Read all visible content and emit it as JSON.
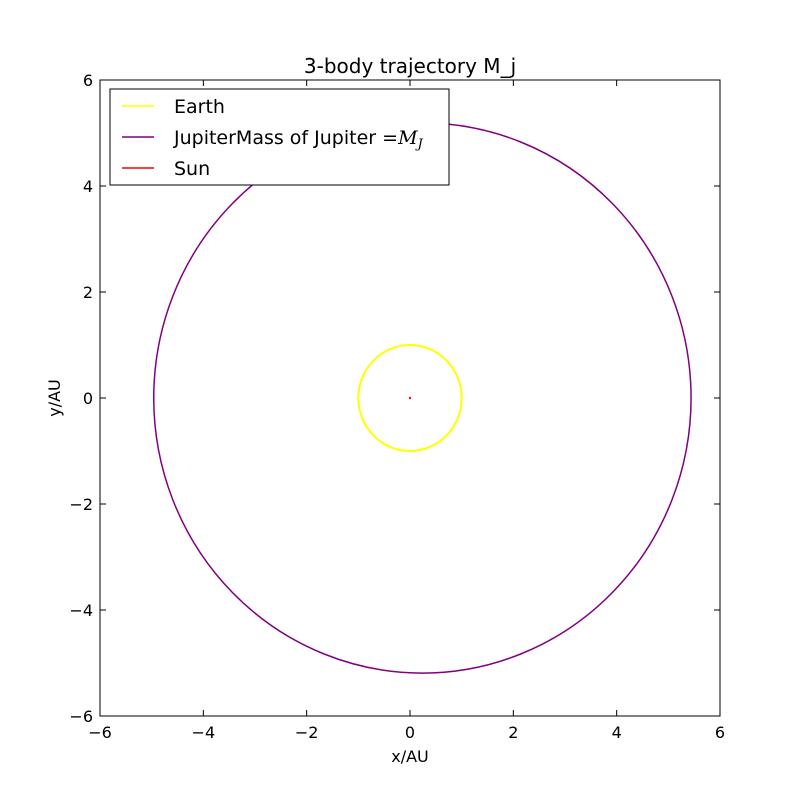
{
  "chart_data": {
    "type": "line",
    "title": "3-body trajectory M_j",
    "xlabel": "x/AU",
    "ylabel": "y/AU",
    "xlim": [
      -6,
      6
    ],
    "ylim": [
      -6,
      6
    ],
    "xticks": [
      -6,
      -4,
      -2,
      0,
      2,
      4,
      6
    ],
    "yticks": [
      -6,
      -4,
      -2,
      0,
      2,
      4,
      6
    ],
    "x_tick_labels": [
      "−6",
      "−4",
      "−2",
      "0",
      "2",
      "4",
      "6"
    ],
    "y_tick_labels": [
      "−6",
      "−4",
      "−2",
      "0",
      "2",
      "4",
      "6"
    ],
    "grid": false,
    "legend": {
      "placement": "top-left",
      "entries": [
        {
          "name": "Earth",
          "suffix": "",
          "color": "#ffff00"
        },
        {
          "name": "JupiterMass of Jupiter =",
          "suffix": "M_J",
          "color": "#800080"
        },
        {
          "name": "Sun",
          "suffix": "",
          "color": "#ff0000"
        }
      ]
    },
    "series": [
      {
        "name": "Earth",
        "color": "#ffff00",
        "shape": "orbit",
        "center": [
          0,
          0
        ],
        "radius_x": 1.0,
        "radius_y": 1.0,
        "line_width": 2
      },
      {
        "name": "JupiterMass of Jupiter =",
        "color": "#800080",
        "shape": "orbit",
        "center": [
          0.24,
          0
        ],
        "radius_x": 5.2,
        "radius_y": 5.19,
        "line_width": 1.5
      },
      {
        "name": "Sun",
        "color": "#ff0000",
        "shape": "point",
        "center": [
          0,
          0
        ]
      }
    ]
  }
}
